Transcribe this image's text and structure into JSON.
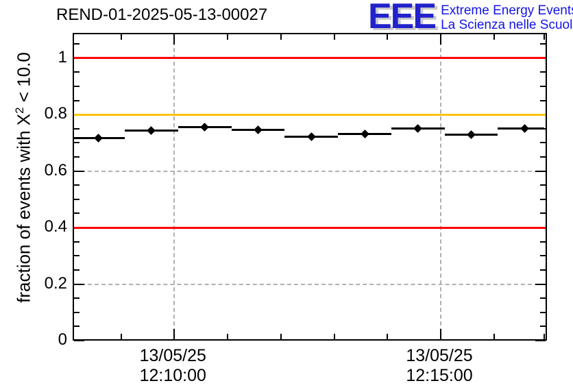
{
  "header": {
    "title": "REND-01-2025-05-13-00027"
  },
  "logo": {
    "acronym": "EEE",
    "line1": "Extreme Energy Events",
    "line2": "La Scienza nelle Scuole",
    "blue": "#1414e6"
  },
  "colors": {
    "limit_red": "#ff0000",
    "warn_orange": "#ffc400",
    "grid_gray": "#b0b0b0",
    "marker_black": "#000000"
  },
  "chart_data": {
    "type": "scatter",
    "title": "REND-01-2025-05-13-00027",
    "xlabel": "",
    "ylabel": "fraction of events with X^2 < 10.0",
    "ylabel_parts": {
      "prefix": "fraction of events with X",
      "sup": "2",
      "suffix": " < 10.0"
    },
    "ylim": [
      0,
      1.089
    ],
    "x_range": {
      "start": "13/05/25 12:08:05",
      "end": "13/05/25 12:17:00"
    },
    "bin_width_minutes": 1,
    "grid": true,
    "legend": false,
    "marker": "filled-diamond",
    "error_bars": "horizontal-bin-width",
    "points": [
      {
        "time": "12:08:34",
        "value": 0.716
      },
      {
        "time": "12:09:34",
        "value": 0.743
      },
      {
        "time": "12:10:34",
        "value": 0.756
      },
      {
        "time": "12:11:34",
        "value": 0.745
      },
      {
        "time": "12:12:34",
        "value": 0.722
      },
      {
        "time": "12:13:34",
        "value": 0.731
      },
      {
        "time": "12:14:34",
        "value": 0.751
      },
      {
        "time": "12:15:34",
        "value": 0.729
      },
      {
        "time": "12:16:34",
        "value": 0.751
      }
    ],
    "y_major_ticks": [
      {
        "value": 0.0,
        "label": "0"
      },
      {
        "value": 0.2,
        "label": "0.2"
      },
      {
        "value": 0.4,
        "label": "0.4"
      },
      {
        "value": 0.6,
        "label": "0.6"
      },
      {
        "value": 0.8,
        "label": "0.8"
      },
      {
        "value": 1.0,
        "label": "1"
      }
    ],
    "y_minor_step": 0.05,
    "x_major_ticks": [
      {
        "date": "13/05/25",
        "time": "12:10:00"
      },
      {
        "date": "13/05/25",
        "time": "12:15:00"
      }
    ],
    "reference_lines": [
      {
        "value": 1.0,
        "color": "#ff0000"
      },
      {
        "value": 0.8,
        "color": "#ffc400"
      },
      {
        "value": 0.4,
        "color": "#ff0000"
      }
    ]
  }
}
